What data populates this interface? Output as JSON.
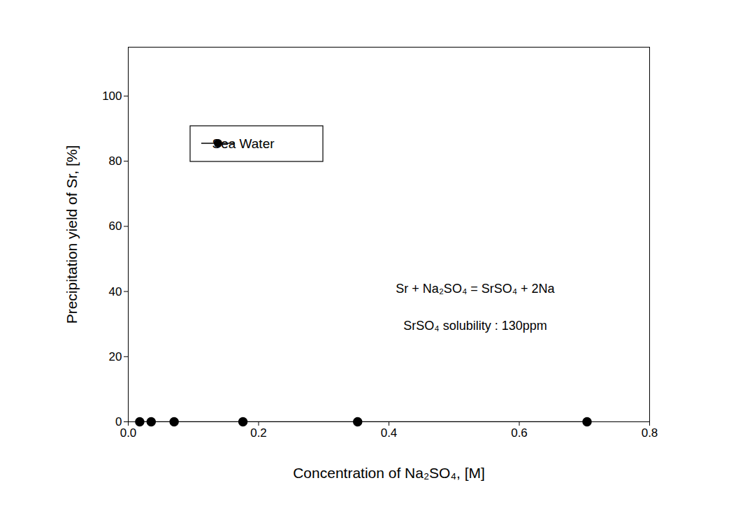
{
  "chart_data": {
    "type": "line",
    "x": [
      0.0176,
      0.0352,
      0.0704,
      0.176,
      0.352,
      0.704
    ],
    "series": [
      {
        "name": "Sea Water",
        "color": "#000000",
        "marker": "circle",
        "values": [
          0,
          0,
          0,
          0,
          0,
          0
        ]
      }
    ],
    "xlabel": "Concentration of Na₂SO₄, [M]",
    "ylabel": "Precipitation yield of Sr, [%]",
    "xlim": [
      0,
      0.8
    ],
    "ylim": [
      0,
      115
    ],
    "xticks": [
      {
        "value": 0,
        "label": "0.0"
      },
      {
        "value": 0.2,
        "label": "0.2"
      },
      {
        "value": 0.4,
        "label": "0.4"
      },
      {
        "value": 0.6,
        "label": "0.6"
      },
      {
        "value": 0.8,
        "label": "0.8"
      }
    ],
    "yticks": [
      0,
      20,
      40,
      60,
      80,
      100
    ],
    "legend": "upper left",
    "annotations": [
      "Sr + Na₂SO₄ = SrSO₄ + 2Na",
      "SrSO₄ solubility : 130ppm"
    ]
  }
}
